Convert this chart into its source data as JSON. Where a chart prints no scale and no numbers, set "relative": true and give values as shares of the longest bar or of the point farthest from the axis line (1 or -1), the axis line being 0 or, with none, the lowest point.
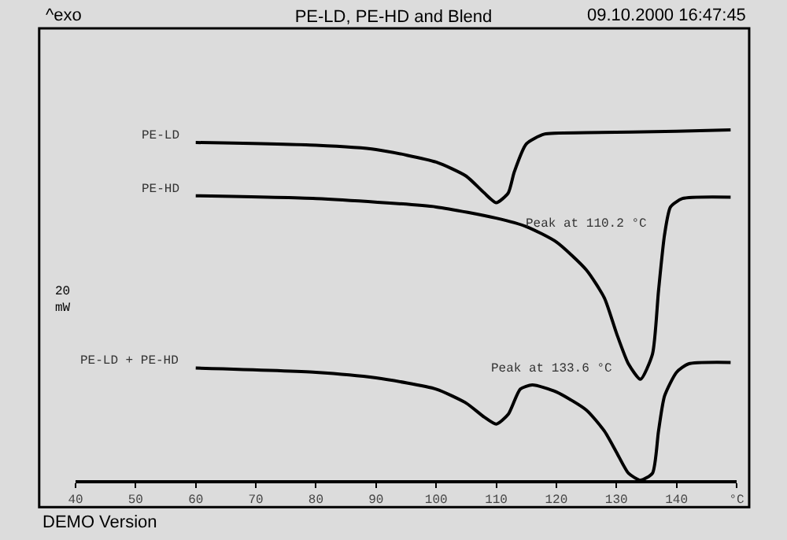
{
  "chart_data": {
    "type": "line",
    "title": "PE-LD, PE-HD and Blend",
    "relative": true,
    "annotations": [
      "^exo",
      "09.10.2000 16:47:45",
      "DEMO Version",
      "20 mW",
      {
        "text": "Peak at 110.2 °C",
        "x": 110.2,
        "y": 0.792
      },
      {
        "text": "Peak at 133.6 °C",
        "x": 133.6,
        "y": 0.288
      }
    ],
    "xlim": [
      40,
      150
    ],
    "xticks": [
      40,
      50,
      60,
      70,
      80,
      90,
      100,
      110,
      120,
      130,
      140,
      {
        "value": 150,
        "label": "°C"
      }
    ],
    "grid": false,
    "legend": false,
    "marker": "none",
    "line_style": "solid",
    "series": [
      {
        "name": "PE-LD",
        "color": "#000000",
        "x": [
          60,
          80,
          90,
          100,
          105,
          108,
          110,
          112,
          113,
          115,
          118,
          125,
          140,
          149
        ],
        "values": [
          0.964,
          0.956,
          0.944,
          0.908,
          0.868,
          0.82,
          0.792,
          0.82,
          0.88,
          0.96,
          0.988,
          0.992,
          0.996,
          1.0
        ]
      },
      {
        "name": "PE-HD",
        "color": "#000000",
        "x": [
          60,
          80,
          100,
          110,
          115,
          120,
          125,
          128,
          130,
          132,
          134,
          136,
          137,
          138,
          139,
          141,
          149
        ],
        "values": [
          0.812,
          0.804,
          0.78,
          0.748,
          0.724,
          0.68,
          0.6,
          0.52,
          0.42,
          0.332,
          0.288,
          0.36,
          0.54,
          0.7,
          0.78,
          0.804,
          0.808
        ]
      },
      {
        "name": "PE-LD + PE-HD",
        "color": "#000000",
        "x": [
          60,
          80,
          90,
          100,
          105,
          108,
          110,
          112,
          114,
          116,
          120,
          125,
          128,
          130,
          132,
          134,
          136,
          137,
          138,
          140,
          142,
          149
        ],
        "values": [
          0.32,
          0.308,
          0.292,
          0.26,
          0.22,
          0.18,
          0.16,
          0.188,
          0.26,
          0.272,
          0.252,
          0.2,
          0.14,
          0.08,
          0.02,
          0.0,
          0.02,
          0.14,
          0.24,
          0.308,
          0.332,
          0.336
        ]
      }
    ]
  }
}
